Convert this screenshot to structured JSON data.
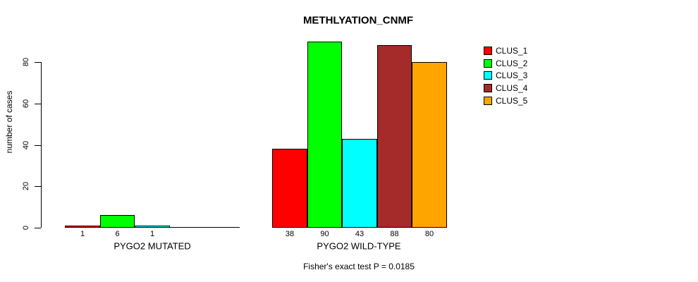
{
  "chart_data": {
    "type": "bar",
    "title": "METHLYATION_CNMF",
    "ylabel": "number of cases",
    "xlabel": "",
    "ylim": [
      0,
      90
    ],
    "yticks": [
      0,
      20,
      40,
      60,
      80
    ],
    "grid": false,
    "legend_position": "right",
    "categories": [
      "PYGO2 MUTATED",
      "PYGO2 WILD-TYPE"
    ],
    "series": [
      {
        "name": "CLUS_1",
        "color": "#FF0000",
        "values": [
          1,
          38
        ]
      },
      {
        "name": "CLUS_2",
        "color": "#00FF00",
        "values": [
          6,
          90
        ]
      },
      {
        "name": "CLUS_3",
        "color": "#00FFFF",
        "values": [
          1,
          43
        ]
      },
      {
        "name": "CLUS_4",
        "color": "#A52A2A",
        "values": [
          0,
          88
        ]
      },
      {
        "name": "CLUS_5",
        "color": "#FFA500",
        "values": [
          0,
          80
        ]
      }
    ],
    "bar_labels": {
      "PYGO2 MUTATED": [
        "1",
        "6",
        "1",
        "",
        ""
      ],
      "PYGO2 WILD-TYPE": [
        "38",
        "90",
        "43",
        "88",
        "80"
      ]
    },
    "annotation": "Fisher's exact test P = 0.0185"
  },
  "legend": {
    "items": [
      {
        "label": "CLUS_1",
        "color": "#FF0000"
      },
      {
        "label": "CLUS_2",
        "color": "#00FF00"
      },
      {
        "label": "CLUS_3",
        "color": "#00FFFF"
      },
      {
        "label": "CLUS_4",
        "color": "#A52A2A"
      },
      {
        "label": "CLUS_5",
        "color": "#FFA500"
      }
    ]
  }
}
